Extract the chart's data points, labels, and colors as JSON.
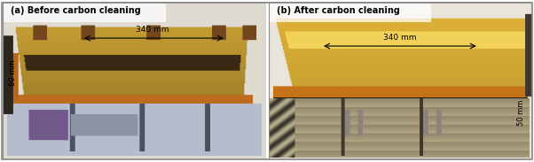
{
  "left_label": "(a) Before carbon cleaning",
  "right_label": "(b) After carbon cleaning",
  "left_arrow_label": "340 mm",
  "right_arrow_label": "340 mm",
  "left_side_label": "80 mm",
  "right_side_label": "50 mm",
  "label_fontsize": 7.0,
  "annot_fontsize": 6.5,
  "fig_width": 6.02,
  "fig_height": 1.83,
  "border_color": "#aaaaaa",
  "bg_color": "#f5f5f5",
  "left_bg": "#ddd8cc",
  "right_bg": "#e8e4d8",
  "left_mirror_top": "#c8a050",
  "left_mirror_stripe": "#3a2a10",
  "left_base": "#b0b8c0",
  "right_mirror_top": "#d4b040",
  "right_base": "#c8c090"
}
